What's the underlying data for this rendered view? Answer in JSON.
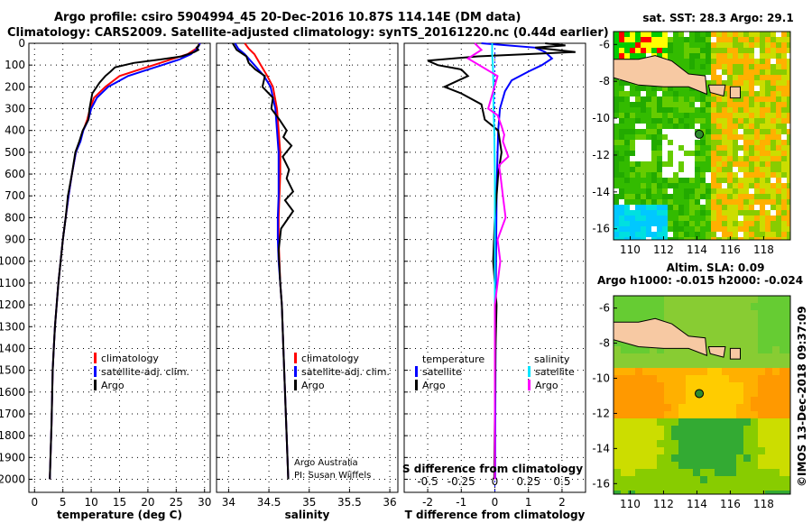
{
  "title": {
    "line1": "Argo profile: csiro 5904994_45 20-Dec-2016 10.87S 114.14E (DM data)",
    "line2": "Climatology: CARS2009. Satellite-adjusted climatology: synTS_20161220.nc (0.44d earlier)"
  },
  "colors": {
    "climatology": "#ff0000",
    "satellite": "#0000ff",
    "argo": "#000000",
    "sat_t": "#00e5ff",
    "argo_s": "#ff00ff",
    "land": "#f7c9a3",
    "float": "#2e8b2e"
  },
  "legend": {
    "climatology": "climatology",
    "satellite_adj": "satellite-adj. clim.",
    "argo": "Argo",
    "temperature": "temperature",
    "salinity": "salinity",
    "satellite": "satellite"
  },
  "credit": {
    "line1": "Argo Australia",
    "line2": "PI: Susan Wijffels"
  },
  "imos_stamp": "©IMOS 13-Dec-2018 09:37:09",
  "chart_data": [
    {
      "type": "line",
      "xlabel": "temperature (deg C)",
      "xlim": [
        -1,
        31
      ],
      "xticks": [
        0,
        5,
        10,
        15,
        20,
        25,
        30
      ],
      "ylim": [
        2060,
        0
      ],
      "yticks": [
        0,
        100,
        200,
        300,
        400,
        500,
        600,
        700,
        800,
        900,
        1000,
        1100,
        1200,
        1300,
        1400,
        1500,
        1600,
        1700,
        1800,
        1900,
        2000
      ],
      "grid": true,
      "legend_position": "bottom-right",
      "series": [
        {
          "name": "climatology",
          "x": [
            29.2,
            28.5,
            27,
            24,
            21,
            18,
            15,
            12.5,
            10.5,
            9.8,
            9.3,
            8.6,
            8.0,
            7.3,
            6.6,
            6.0,
            5.5,
            5.0,
            4.6,
            4.2,
            3.9,
            3.6,
            3.4,
            3.2,
            3.0,
            2.7
          ],
          "y": [
            0,
            25,
            50,
            75,
            100,
            125,
            150,
            200,
            250,
            300,
            350,
            400,
            450,
            500,
            600,
            700,
            800,
            900,
            1000,
            1100,
            1200,
            1300,
            1400,
            1500,
            1750,
            2000
          ]
        },
        {
          "name": "satellite-adj. clim.",
          "x": [
            29.2,
            28.7,
            27.6,
            25.5,
            22.5,
            19.5,
            16.5,
            13.0,
            11.0,
            10.0,
            9.5,
            8.6,
            8.1,
            7.3,
            6.6,
            6.0,
            5.5,
            5.0,
            4.6,
            4.2,
            3.9,
            3.6,
            3.4,
            3.2,
            3.0,
            2.7
          ],
          "y": [
            0,
            25,
            50,
            75,
            100,
            125,
            150,
            200,
            250,
            300,
            350,
            400,
            450,
            500,
            600,
            700,
            800,
            900,
            1000,
            1100,
            1200,
            1300,
            1400,
            1500,
            1750,
            2000
          ]
        },
        {
          "name": "Argo",
          "x": [
            28.9,
            29.0,
            28.6,
            28.9,
            28.2,
            26,
            22,
            17.5,
            14.2,
            13.4,
            12.5,
            11.5,
            10.2,
            9.7,
            9.5,
            8.5,
            7.9,
            7.2,
            6.6,
            5.9,
            5.5,
            5.0,
            4.6,
            4.2,
            3.9,
            3.6,
            3.4,
            3.2,
            3.0,
            2.7
          ],
          "y": [
            5,
            10,
            20,
            30,
            40,
            60,
            75,
            90,
            110,
            130,
            150,
            180,
            230,
            300,
            350,
            400,
            450,
            500,
            600,
            700,
            800,
            900,
            1000,
            1100,
            1200,
            1300,
            1400,
            1500,
            1750,
            2000
          ]
        }
      ]
    },
    {
      "type": "line",
      "xlabel": "salinity",
      "xlim": [
        33.85,
        36.1
      ],
      "xticks": [
        34,
        34.5,
        35,
        35.5,
        36
      ],
      "xticklabels": [
        "34",
        "34.5",
        "35",
        "35.5",
        "36"
      ],
      "ylim": [
        2060,
        0
      ],
      "grid": true,
      "legend_position": "bottom-right",
      "series": [
        {
          "name": "climatology",
          "x": [
            34.2,
            34.25,
            34.32,
            34.4,
            34.48,
            34.55,
            34.6,
            34.62,
            34.64,
            34.64,
            34.63,
            34.62,
            34.62,
            34.63,
            34.64,
            34.66,
            34.68,
            34.7,
            34.72,
            34.74
          ],
          "y": [
            0,
            25,
            50,
            100,
            150,
            200,
            300,
            400,
            500,
            600,
            700,
            800,
            900,
            1000,
            1100,
            1200,
            1400,
            1600,
            1800,
            2000
          ]
        },
        {
          "name": "satellite-adj. clim.",
          "x": [
            34.08,
            34.12,
            34.2,
            34.32,
            34.44,
            34.52,
            34.58,
            34.6,
            34.62,
            34.62,
            34.62,
            34.61,
            34.61,
            34.62,
            34.64,
            34.66,
            34.68,
            34.7,
            34.72,
            34.74
          ],
          "y": [
            0,
            25,
            50,
            100,
            150,
            200,
            300,
            400,
            500,
            600,
            700,
            800,
            900,
            1000,
            1100,
            1200,
            1400,
            1600,
            1800,
            2000
          ]
        },
        {
          "name": "Argo",
          "x": [
            34.05,
            34.1,
            34.22,
            34.25,
            34.33,
            34.45,
            34.42,
            34.55,
            34.53,
            34.63,
            34.72,
            34.68,
            34.78,
            34.67,
            34.75,
            34.72,
            34.8,
            34.7,
            34.8,
            34.65,
            34.62,
            34.64,
            34.66,
            34.68,
            34.7,
            34.72,
            34.74
          ],
          "y": [
            0,
            30,
            60,
            90,
            120,
            150,
            200,
            250,
            300,
            350,
            400,
            430,
            470,
            520,
            580,
            620,
            680,
            720,
            770,
            850,
            950,
            1100,
            1200,
            1400,
            1600,
            1800,
            2000
          ]
        }
      ]
    },
    {
      "type": "line",
      "xlabel": "T difference from climatology",
      "top_axis_label": "S difference from climatology",
      "xlim": [
        -2.7,
        2.7
      ],
      "xticks": [
        -2,
        -1,
        0,
        1,
        2
      ],
      "top_xticks": [
        -0.5,
        -0.25,
        0,
        0.25,
        0.5
      ],
      "top_xticklabels": [
        "-0.5",
        "-0.25",
        "0",
        "0.25",
        "0.5"
      ],
      "ylim": [
        2060,
        0
      ],
      "grid": true,
      "legend_position": "bottom",
      "series": [
        {
          "name": "temperature satellite",
          "quantity": "T",
          "x": [
            -0.4,
            1.2,
            1.5,
            1.7,
            1.4,
            1.0,
            0.5,
            0.3,
            0.15,
            0.1,
            0.08,
            0.05,
            0.04,
            0.03,
            0.02,
            0.02,
            0.01,
            0.01
          ],
          "y": [
            0,
            20,
            40,
            70,
            100,
            130,
            170,
            220,
            300,
            400,
            500,
            700,
            900,
            1100,
            1300,
            1500,
            1800,
            2000
          ]
        },
        {
          "name": "temperature Argo",
          "quantity": "T",
          "x": [
            1.5,
            2.1,
            1.2,
            1.8,
            2.4,
            -0.5,
            -2.0,
            -1.7,
            -1.0,
            -0.8,
            -1.5,
            -1.0,
            -0.4,
            -0.3,
            0.1,
            0.2,
            0.1,
            0.05,
            0.0,
            -0.05,
            0.05,
            0.02,
            0.0,
            -0.02
          ],
          "y": [
            0,
            10,
            20,
            30,
            40,
            60,
            80,
            100,
            120,
            150,
            200,
            230,
            280,
            350,
            400,
            500,
            600,
            700,
            800,
            1000,
            1200,
            1400,
            1700,
            2000
          ]
        },
        {
          "name": "salinity satellite",
          "quantity": "S",
          "x": [
            -0.02,
            -0.02,
            -0.015,
            -0.01,
            -0.01,
            -0.005,
            0.0,
            0.0,
            0.0,
            0.0,
            0.0,
            0.0
          ],
          "y": [
            0,
            50,
            100,
            200,
            300,
            400,
            600,
            800,
            1000,
            1400,
            1800,
            2000
          ]
        },
        {
          "name": "salinity Argo",
          "quantity": "S",
          "x": [
            -0.15,
            -0.1,
            -0.2,
            0.02,
            -0.05,
            0.02,
            0.05,
            0.07,
            0.06,
            0.1,
            0.03,
            0.04,
            0.06,
            0.08,
            0.02,
            0.04,
            0.0,
            0.0,
            0.0,
            0.0
          ],
          "y": [
            0,
            30,
            70,
            150,
            300,
            330,
            380,
            420,
            450,
            520,
            560,
            600,
            700,
            800,
            900,
            1000,
            1200,
            1500,
            1800,
            2000
          ]
        }
      ]
    },
    {
      "type": "heatmap",
      "title": "sat. SST: 28.3 Argo: 29.1",
      "xticks": [
        110,
        112,
        114,
        116,
        118
      ],
      "yticks": [
        -6,
        -8,
        -10,
        -12,
        -14,
        -16
      ],
      "float_position": {
        "lon": 114.14,
        "lat": -10.87
      }
    },
    {
      "type": "heatmap",
      "title": "Altim. SLA: 0.09",
      "subtitle": "Argo h1000: -0.015 h2000: -0.024",
      "xticks": [
        110,
        112,
        114,
        116,
        118
      ],
      "yticks": [
        -6,
        -8,
        -10,
        -12,
        -14,
        -16
      ],
      "float_position": {
        "lon": 114.14,
        "lat": -10.87
      }
    }
  ]
}
